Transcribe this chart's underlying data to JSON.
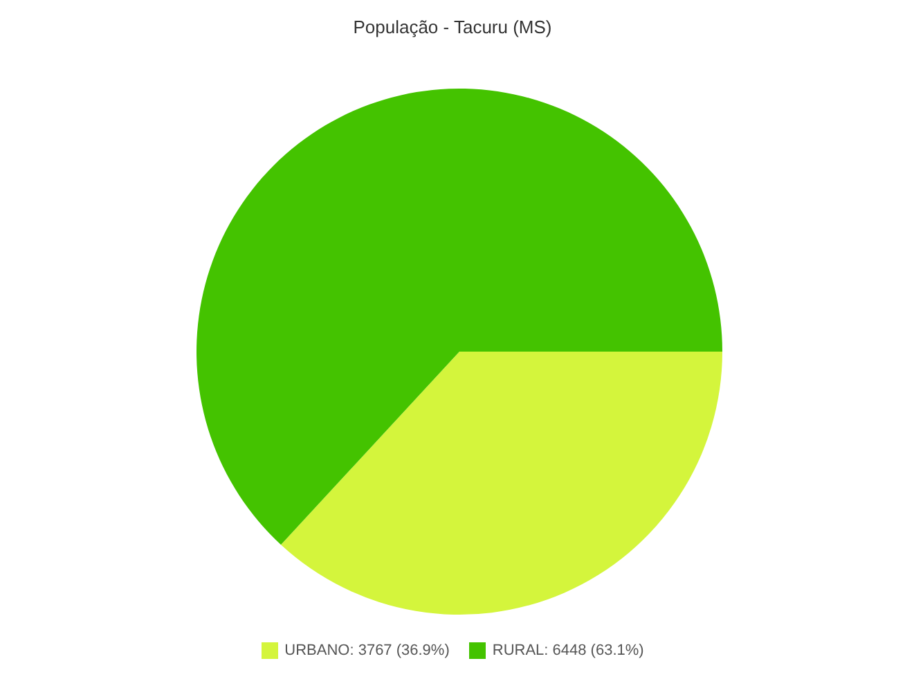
{
  "chart_data": {
    "type": "pie",
    "title": "População - Tacuru (MS)",
    "categories": [
      "URBANO",
      "RURAL"
    ],
    "values": [
      3767,
      6448
    ],
    "value_labels": [
      "3767 (36.9%)",
      "6448 (63.1%)"
    ],
    "colors": [
      "#d4f53c",
      "#44c300"
    ],
    "legend": "bottom"
  }
}
